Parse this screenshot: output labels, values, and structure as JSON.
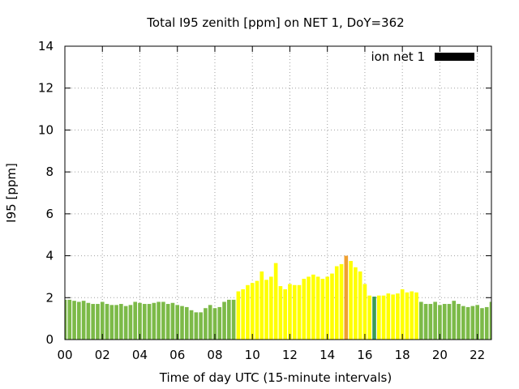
{
  "chart_data": {
    "type": "bar",
    "title": "Total I95 zenith [ppm] on NET 1, DoY=362",
    "xlabel": "Time of day UTC (15-minute intervals)",
    "ylabel": "I95 [ppm]",
    "xlim": [
      0,
      22.75
    ],
    "ylim": [
      0,
      14
    ],
    "xticks": [
      0,
      2,
      4,
      6,
      8,
      10,
      12,
      14,
      16,
      18,
      20,
      22
    ],
    "xtick_labels": [
      "00",
      "02",
      "04",
      "06",
      "08",
      "10",
      "12",
      "14",
      "16",
      "18",
      "20",
      "22"
    ],
    "yticks": [
      0,
      2,
      4,
      6,
      8,
      10,
      12,
      14
    ],
    "ytick_labels": [
      "0",
      "2",
      "4",
      "6",
      "8",
      "10",
      "12",
      "14"
    ],
    "grid": true,
    "legend": {
      "label": "ion net 1",
      "placement": "top-right",
      "color": "#000000"
    },
    "bar_width_hours": 0.2,
    "colors": {
      "green": "#7cba48",
      "yellow": "#ffff00",
      "orange": "#f0a030",
      "teal": "#3a9a58"
    },
    "series": [
      {
        "name": "ion net 1",
        "x": [
          0.0,
          0.25,
          0.5,
          0.75,
          1.0,
          1.25,
          1.5,
          1.75,
          2.0,
          2.25,
          2.5,
          2.75,
          3.0,
          3.25,
          3.5,
          3.75,
          4.0,
          4.25,
          4.5,
          4.75,
          5.0,
          5.25,
          5.5,
          5.75,
          6.0,
          6.25,
          6.5,
          6.75,
          7.0,
          7.25,
          7.5,
          7.75,
          8.0,
          8.25,
          8.5,
          8.75,
          9.0,
          9.25,
          9.5,
          9.75,
          10.0,
          10.25,
          10.5,
          10.75,
          11.0,
          11.25,
          11.5,
          11.75,
          12.0,
          12.25,
          12.5,
          12.75,
          13.0,
          13.25,
          13.5,
          13.75,
          14.0,
          14.25,
          14.5,
          14.75,
          15.0,
          15.25,
          15.5,
          15.75,
          16.0,
          16.25,
          16.5,
          16.75,
          17.0,
          17.25,
          17.5,
          17.75,
          18.0,
          18.25,
          18.5,
          18.75,
          19.0,
          19.25,
          19.5,
          19.75,
          20.0,
          20.25,
          20.5,
          20.75,
          21.0,
          21.25,
          21.5,
          21.75,
          22.0,
          22.25,
          22.5,
          22.75
        ],
        "values": [
          1.9,
          1.9,
          1.85,
          1.8,
          1.85,
          1.75,
          1.7,
          1.7,
          1.8,
          1.7,
          1.65,
          1.65,
          1.7,
          1.6,
          1.65,
          1.8,
          1.75,
          1.7,
          1.7,
          1.75,
          1.8,
          1.8,
          1.7,
          1.75,
          1.65,
          1.6,
          1.55,
          1.4,
          1.3,
          1.3,
          1.5,
          1.65,
          1.5,
          1.55,
          1.8,
          1.9,
          1.9,
          2.3,
          2.4,
          2.6,
          2.7,
          2.8,
          3.25,
          2.85,
          3.0,
          3.65,
          2.55,
          2.4,
          2.65,
          2.6,
          2.6,
          2.9,
          3.0,
          3.1,
          3.0,
          2.9,
          3.0,
          3.15,
          3.5,
          3.6,
          4.0,
          3.75,
          3.45,
          3.25,
          2.65,
          2.1,
          2.05,
          2.1,
          2.1,
          2.2,
          2.15,
          2.2,
          2.4,
          2.25,
          2.3,
          2.25,
          1.8,
          1.7,
          1.7,
          1.8,
          1.65,
          1.7,
          1.7,
          1.85,
          1.7,
          1.6,
          1.55,
          1.6,
          1.65,
          1.5,
          1.55,
          1.8
        ],
        "colors": [
          "green",
          "green",
          "green",
          "green",
          "green",
          "green",
          "green",
          "green",
          "green",
          "green",
          "green",
          "green",
          "green",
          "green",
          "green",
          "green",
          "green",
          "green",
          "green",
          "green",
          "green",
          "green",
          "green",
          "green",
          "green",
          "green",
          "green",
          "green",
          "green",
          "green",
          "green",
          "green",
          "green",
          "green",
          "green",
          "green",
          "green",
          "yellow",
          "yellow",
          "yellow",
          "yellow",
          "yellow",
          "yellow",
          "yellow",
          "yellow",
          "yellow",
          "yellow",
          "yellow",
          "yellow",
          "yellow",
          "yellow",
          "yellow",
          "yellow",
          "yellow",
          "yellow",
          "yellow",
          "yellow",
          "yellow",
          "yellow",
          "yellow",
          "orange",
          "yellow",
          "yellow",
          "yellow",
          "yellow",
          "yellow",
          "teal",
          "yellow",
          "yellow",
          "yellow",
          "yellow",
          "yellow",
          "yellow",
          "yellow",
          "yellow",
          "yellow",
          "green",
          "green",
          "green",
          "green",
          "green",
          "green",
          "green",
          "green",
          "green",
          "green",
          "green",
          "green",
          "green",
          "green",
          "green",
          "green"
        ]
      }
    ]
  }
}
